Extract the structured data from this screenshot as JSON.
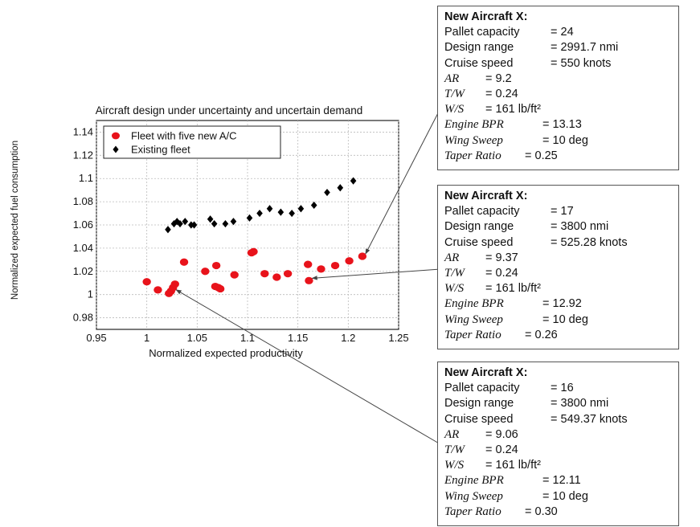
{
  "chart_data": {
    "type": "scatter",
    "title": "Aircraft design under uncertainty and uncertain demand",
    "xlabel": "Normalized expected  productivity",
    "ylabel": "Normalized expected fuel consumption",
    "xlim": [
      0.95,
      1.25
    ],
    "ylim": [
      0.97,
      1.15
    ],
    "xticks": [
      "0.95",
      "1",
      "1.05",
      "1.1",
      "1.15",
      "1.2",
      "1.25"
    ],
    "yticks": [
      "0.98",
      "1",
      "1.02",
      "1.04",
      "1.06",
      "1.08",
      "1.1",
      "1.12",
      "1.14"
    ],
    "grid": true,
    "legend_position": "top-left",
    "series": [
      {
        "name": "Fleet with five new A/C",
        "color": "#e8131b",
        "marker": "circle",
        "points": [
          [
            1.0,
            1.011
          ],
          [
            1.011,
            1.004
          ],
          [
            1.022,
            1.001
          ],
          [
            1.024,
            1.003
          ],
          [
            1.026,
            1.006
          ],
          [
            1.028,
            1.009
          ],
          [
            1.037,
            1.028
          ],
          [
            1.058,
            1.02
          ],
          [
            1.068,
            1.007
          ],
          [
            1.071,
            1.006
          ],
          [
            1.069,
            1.025
          ],
          [
            1.073,
            1.005
          ],
          [
            1.087,
            1.017
          ],
          [
            1.104,
            1.036
          ],
          [
            1.106,
            1.037
          ],
          [
            1.117,
            1.018
          ],
          [
            1.129,
            1.015
          ],
          [
            1.14,
            1.018
          ],
          [
            1.16,
            1.026
          ],
          [
            1.161,
            1.012
          ],
          [
            1.173,
            1.022
          ],
          [
            1.187,
            1.025
          ],
          [
            1.201,
            1.029
          ],
          [
            1.214,
            1.033
          ]
        ]
      },
      {
        "name": "Existing fleet",
        "color": "#000000",
        "marker": "diamond",
        "points": [
          [
            1.021,
            1.056
          ],
          [
            1.027,
            1.061
          ],
          [
            1.03,
            1.063
          ],
          [
            1.033,
            1.061
          ],
          [
            1.038,
            1.063
          ],
          [
            1.044,
            1.06
          ],
          [
            1.047,
            1.06
          ],
          [
            1.063,
            1.065
          ],
          [
            1.067,
            1.061
          ],
          [
            1.078,
            1.061
          ],
          [
            1.086,
            1.063
          ],
          [
            1.102,
            1.066
          ],
          [
            1.112,
            1.07
          ],
          [
            1.122,
            1.074
          ],
          [
            1.133,
            1.071
          ],
          [
            1.144,
            1.07
          ],
          [
            1.153,
            1.074
          ],
          [
            1.166,
            1.077
          ],
          [
            1.179,
            1.088
          ],
          [
            1.192,
            1.092
          ],
          [
            1.205,
            1.098
          ]
        ]
      }
    ],
    "annotations": [
      {
        "title": "New Aircraft X:",
        "target": [
          1.214,
          1.033
        ],
        "lines": [
          {
            "label": "Pallet capacity",
            "value": "= 24",
            "style": "plain"
          },
          {
            "label": "Design range",
            "value": "= 2991.7 nmi",
            "style": "plain"
          },
          {
            "label": "Cruise speed",
            "value": "= 550 knots",
            "style": "plain"
          },
          {
            "label": "AR",
            "value": "= 9.2",
            "style": "italic"
          },
          {
            "label": "T/W",
            "value": "= 0.24",
            "style": "italic"
          },
          {
            "label": "W/S",
            "value": "= 161 lb/ft²",
            "style": "italic"
          },
          {
            "label": "Engine BPR",
            "value": "= 13.13",
            "style": "italic"
          },
          {
            "label": "Wing Sweep",
            "value": "= 10 deg",
            "style": "italic"
          },
          {
            "label": "Taper Ratio",
            "value": "= 0.25",
            "style": "italic"
          }
        ]
      },
      {
        "title": "New Aircraft X:",
        "target": [
          1.161,
          1.012
        ],
        "lines": [
          {
            "label": "Pallet capacity",
            "value": "= 17",
            "style": "plain"
          },
          {
            "label": "Design range",
            "value": "= 3800 nmi",
            "style": "plain"
          },
          {
            "label": "Cruise speed",
            "value": "= 525.28 knots",
            "style": "plain"
          },
          {
            "label": "AR",
            "value": "= 9.37",
            "style": "italic"
          },
          {
            "label": "T/W",
            "value": "= 0.24",
            "style": "italic"
          },
          {
            "label": "W/S",
            "value": "= 161 lb/ft²",
            "style": "italic"
          },
          {
            "label": "Engine BPR",
            "value": "= 12.92",
            "style": "italic"
          },
          {
            "label": "Wing Sweep",
            "value": "= 10 deg",
            "style": "italic"
          },
          {
            "label": "Taper Ratio",
            "value": "= 0.26",
            "style": "italic"
          }
        ]
      },
      {
        "title": "New Aircraft X:",
        "target": [
          1.026,
          1.002
        ],
        "lines": [
          {
            "label": "Pallet capacity",
            "value": "= 16",
            "style": "plain"
          },
          {
            "label": "Design range",
            "value": "= 3800 nmi",
            "style": "plain"
          },
          {
            "label": "Cruise speed",
            "value": "= 549.37 knots",
            "style": "plain"
          },
          {
            "label": "AR",
            "value": "= 9.06",
            "style": "italic"
          },
          {
            "label": "T/W",
            "value": "= 0.24",
            "style": "italic"
          },
          {
            "label": "W/S",
            "value": "= 161 lb/ft²",
            "style": "italic"
          },
          {
            "label": "Engine BPR",
            "value": "= 12.11",
            "style": "italic"
          },
          {
            "label": "Wing Sweep",
            "value": "= 10 deg",
            "style": "italic"
          },
          {
            "label": "Taper Ratio",
            "value": "= 0.30",
            "style": "italic"
          }
        ]
      }
    ]
  }
}
